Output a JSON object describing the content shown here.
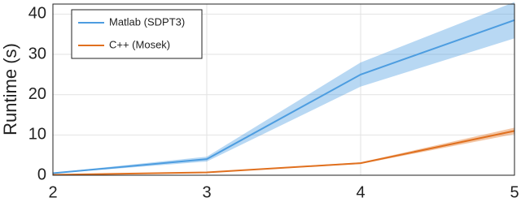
{
  "chart_data": {
    "type": "line",
    "y_label": "Runtime (s)",
    "x": [
      2,
      3,
      4,
      5
    ],
    "series": [
      {
        "name": "Matlab (SDPT3)",
        "color": "#4d9de0",
        "values": [
          0.5,
          4,
          25,
          38.5
        ],
        "lower": [
          0.4,
          3.4,
          22,
          34
        ],
        "upper": [
          0.6,
          4.6,
          28,
          43
        ]
      },
      {
        "name": "C++ (Mosek)",
        "color": "#e0701f",
        "values": [
          0.1,
          0.7,
          3,
          11
        ],
        "lower": [
          0.05,
          0.6,
          2.8,
          10.2
        ],
        "upper": [
          0.15,
          0.8,
          3.2,
          11.8
        ]
      }
    ],
    "xlim": [
      2,
      5
    ],
    "ylim": [
      0,
      42.5
    ],
    "xticks": [
      2,
      3,
      4,
      5
    ],
    "yticks": [
      0,
      10,
      20,
      30,
      40
    ],
    "grid": true,
    "legend_position": "upper-left"
  }
}
